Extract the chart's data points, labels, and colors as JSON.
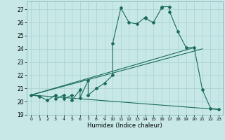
{
  "title": "",
  "xlabel": "Humidex (Indice chaleur)",
  "bg_color": "#c8e8e8",
  "line_color": "#1a6b5a",
  "grid_color": "#a8d0d0",
  "xlim": [
    -0.5,
    23.5
  ],
  "ylim": [
    19,
    27.6
  ],
  "yticks": [
    19,
    20,
    21,
    22,
    23,
    24,
    25,
    26,
    27
  ],
  "xticks": [
    0,
    1,
    2,
    3,
    4,
    5,
    6,
    7,
    8,
    9,
    10,
    11,
    12,
    13,
    14,
    15,
    16,
    17,
    18,
    19,
    20,
    21,
    22,
    23
  ],
  "curve1_x": [
    0,
    1,
    2,
    3,
    3,
    4,
    4,
    5,
    5,
    6,
    6,
    7,
    7,
    8,
    9,
    10,
    10,
    11,
    12,
    13,
    14,
    14,
    15,
    16,
    16,
    17,
    17,
    18,
    19,
    20,
    21,
    22,
    23
  ],
  "curve1_y": [
    20.5,
    20.4,
    20.1,
    20.5,
    20.2,
    20.5,
    20.2,
    20.5,
    20.1,
    20.9,
    20.3,
    21.6,
    20.5,
    21.0,
    21.4,
    22.0,
    24.4,
    27.1,
    26.0,
    25.9,
    26.4,
    26.3,
    26.0,
    27.1,
    27.2,
    27.2,
    26.8,
    25.3,
    24.1,
    24.1,
    20.9,
    19.5,
    19.4
  ],
  "line1_x": [
    0,
    20
  ],
  "line1_y": [
    20.5,
    24.1
  ],
  "line2_x": [
    0,
    21
  ],
  "line2_y": [
    20.5,
    24.0
  ],
  "line3_x": [
    0,
    23
  ],
  "line3_y": [
    20.5,
    19.4
  ],
  "marker": "D",
  "markersize": 2.0,
  "linewidth": 0.8
}
